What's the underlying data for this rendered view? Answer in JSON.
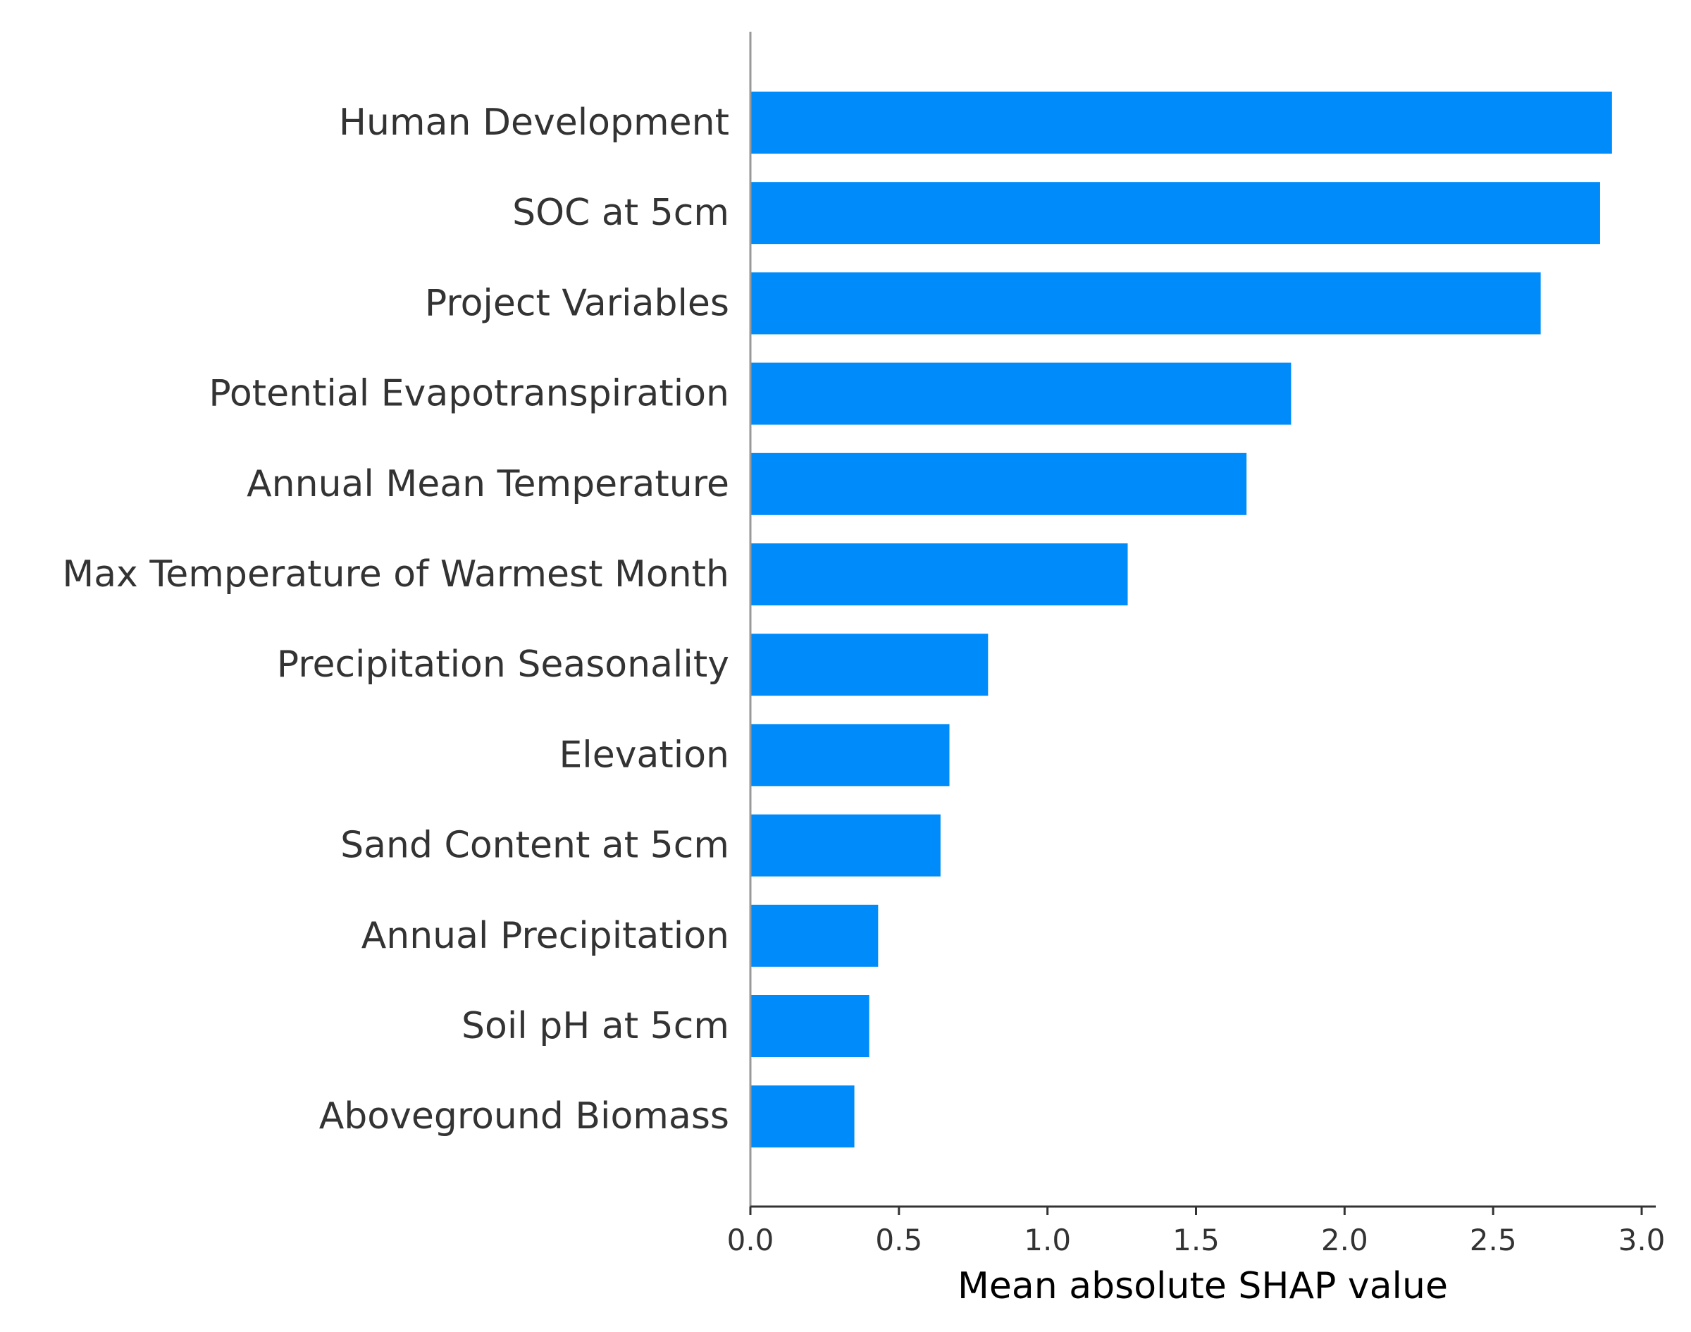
{
  "chart_data": {
    "type": "bar",
    "orientation": "horizontal",
    "title": "",
    "xlabel": "Mean absolute SHAP value",
    "ylabel": "",
    "xlim": [
      0,
      3.0
    ],
    "xticks": [
      "0.0",
      "0.5",
      "1.0",
      "1.5",
      "2.0",
      "2.5",
      "3.0"
    ],
    "grid": false,
    "bar_color": "#008bfb",
    "categories": [
      "Human Development",
      "SOC at 5cm",
      "Project Variables",
      "Potential Evapotranspiration",
      "Annual Mean Temperature",
      "Max Temperature of Warmest Month",
      "Precipitation Seasonality",
      "Elevation",
      "Sand Content at 5cm",
      "Annual Precipitation",
      "Soil pH at 5cm",
      "Aboveground Biomass"
    ],
    "values": [
      2.9,
      2.86,
      2.66,
      1.82,
      1.67,
      1.27,
      0.8,
      0.67,
      0.64,
      0.43,
      0.4,
      0.35
    ]
  }
}
